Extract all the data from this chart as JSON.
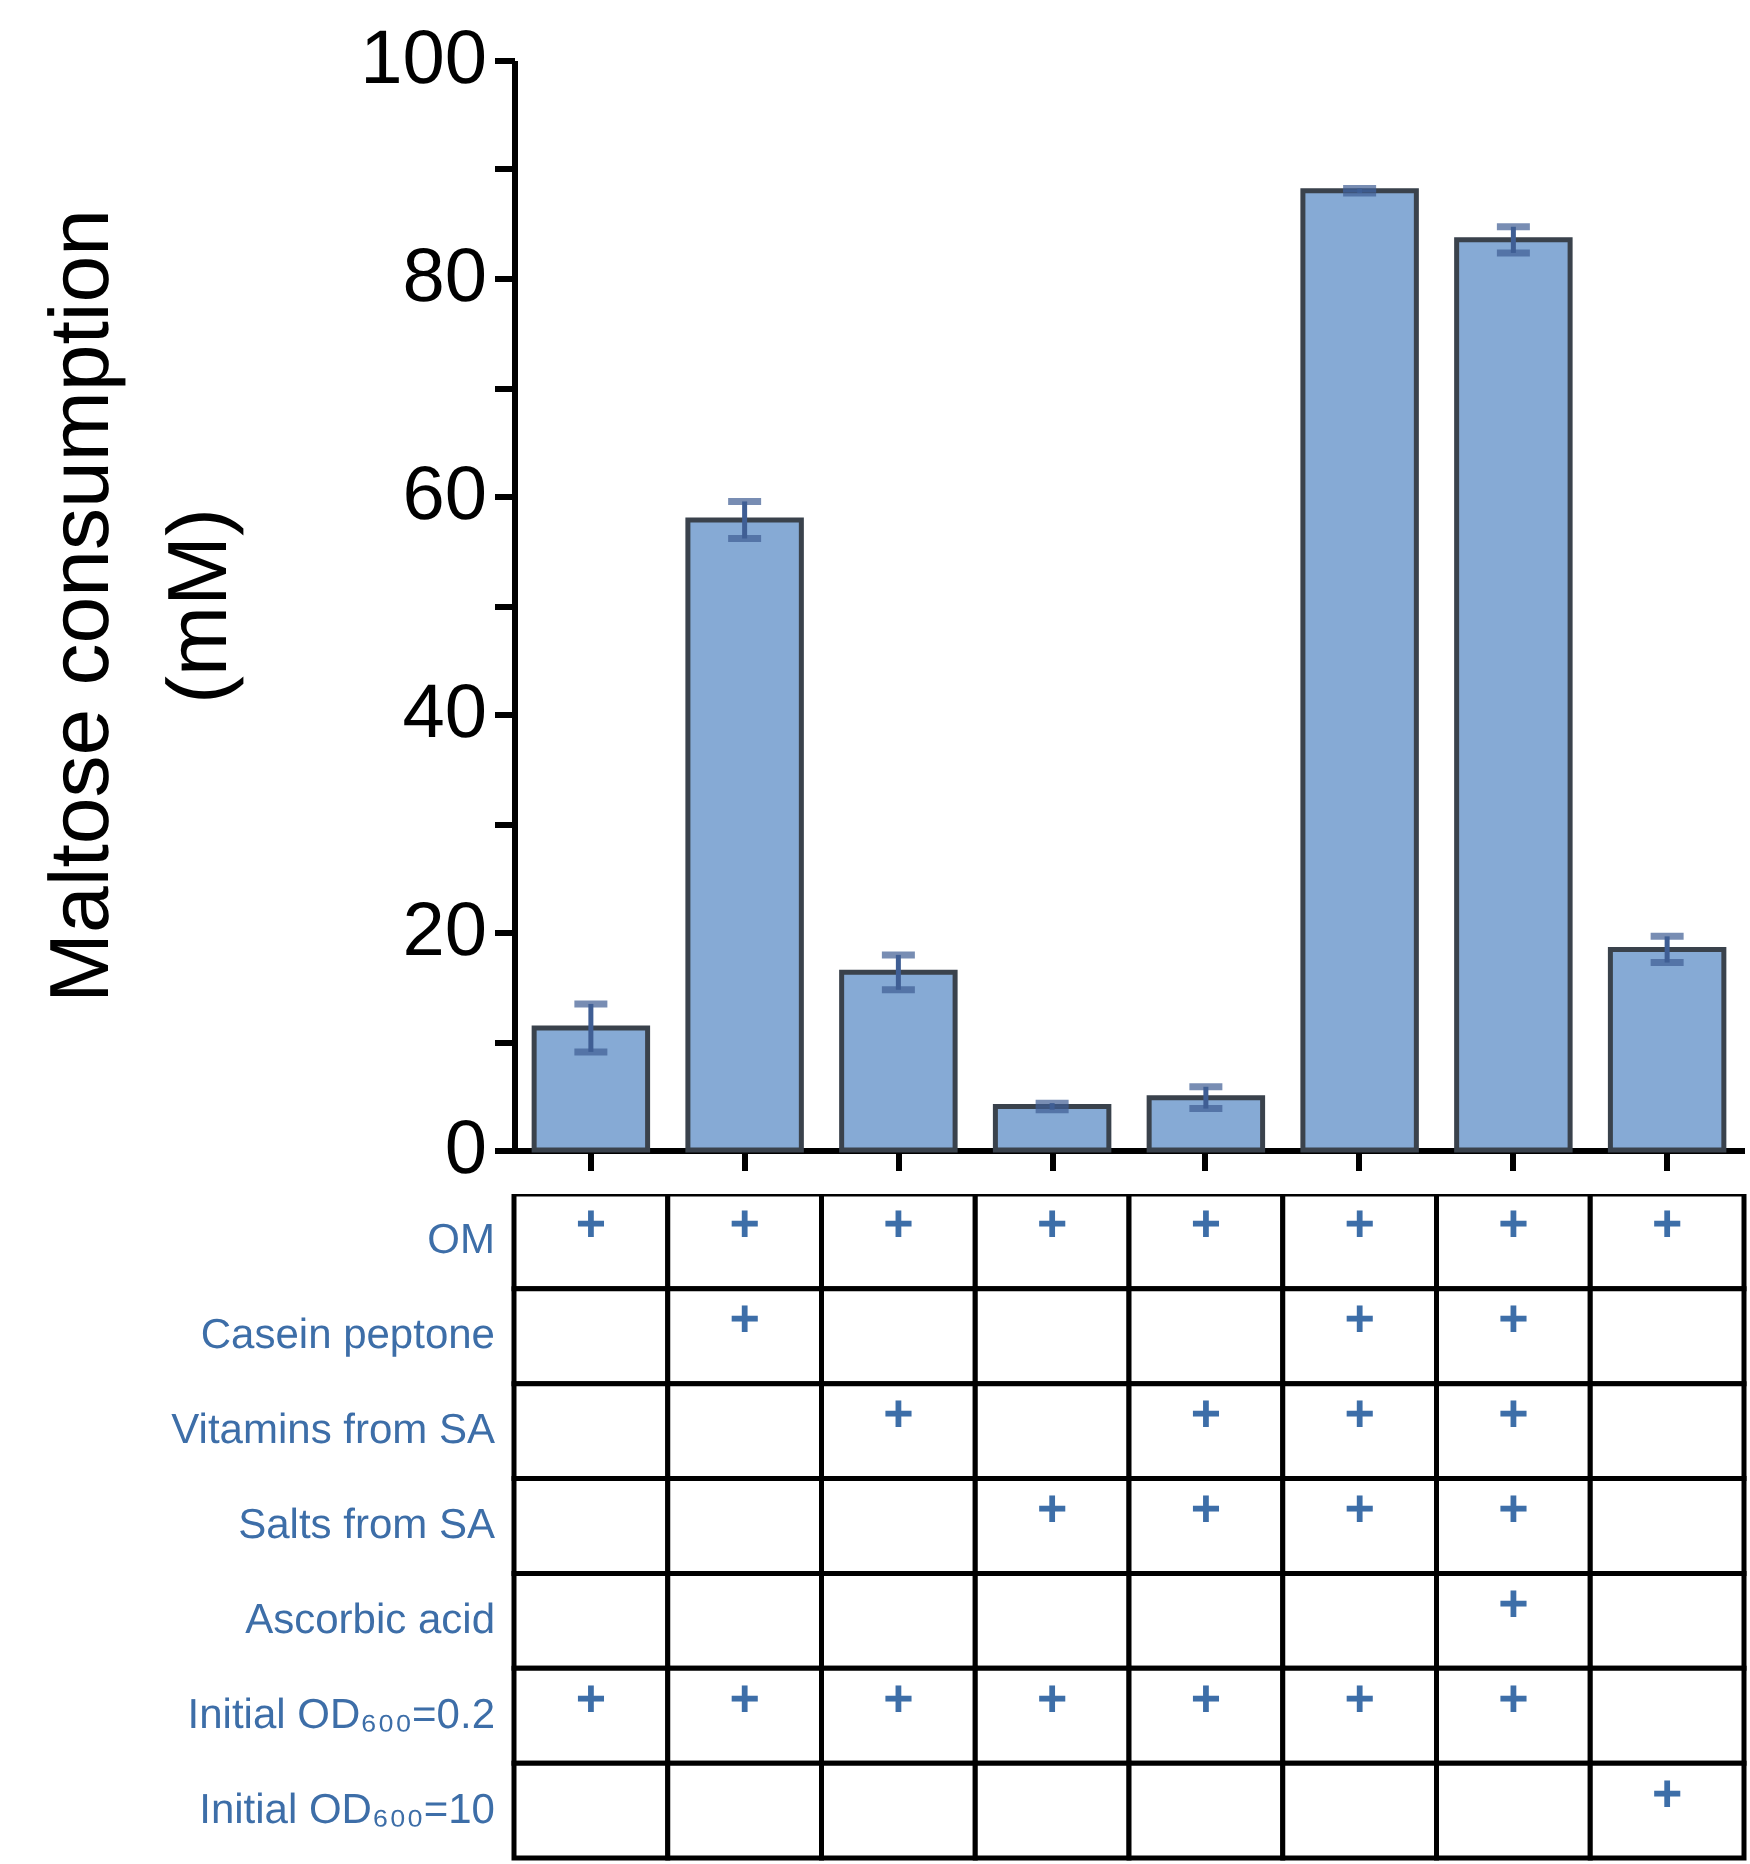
{
  "chart_data": [
    {
      "type": "bar",
      "ylabel": "Maltose consumption\n(mM)",
      "categories": [
        null,
        null,
        null,
        null,
        null,
        null,
        null,
        null
      ],
      "values": [
        11.2,
        57.8,
        16.3,
        4.0,
        4.8,
        88.0,
        83.5,
        18.4
      ],
      "errors": [
        2.2,
        1.7,
        1.6,
        0.3,
        1.0,
        0.2,
        1.2,
        1.2
      ],
      "color": "#86aad5",
      "ylim": [
        0,
        100
      ],
      "yticks": [
        0,
        {
          "value": 10,
          "label": null
        },
        20,
        {
          "value": 30,
          "label": null
        },
        40,
        {
          "value": 50,
          "label": null
        },
        60,
        {
          "value": 70,
          "label": null
        },
        80,
        {
          "value": 90,
          "label": null
        },
        100
      ],
      "grid": false
    },
    {
      "type": "heatmap",
      "categories": [
        null,
        null,
        null,
        null,
        null,
        null,
        null,
        null
      ],
      "y_categories": [
        "OM",
        "Casein peptone",
        "Vitamins from SA",
        "Salts from SA",
        "Ascorbic acid",
        "Initial OD₆₀₀=0.2",
        "Initial OD₆₀₀=10"
      ],
      "cells": [
        [
          null,
          null,
          null,
          null,
          null,
          null,
          null,
          null
        ],
        [
          null,
          null,
          null,
          null,
          null,
          null,
          null,
          null
        ],
        [
          null,
          null,
          null,
          null,
          null,
          null,
          null,
          null
        ],
        [
          null,
          null,
          null,
          null,
          null,
          null,
          null,
          null
        ],
        [
          null,
          null,
          null,
          null,
          null,
          null,
          null,
          null
        ],
        [
          null,
          null,
          null,
          null,
          null,
          null,
          null,
          null
        ],
        [
          null,
          null,
          null,
          null,
          null,
          null,
          null,
          null
        ]
      ],
      "cell_labels": [
        [
          "+",
          "+",
          "+",
          "+",
          "+",
          "+",
          "+",
          "+"
        ],
        [
          null,
          "+",
          null,
          null,
          null,
          "+",
          "+",
          null
        ],
        [
          null,
          null,
          "+",
          null,
          "+",
          "+",
          "+",
          null
        ],
        [
          null,
          null,
          null,
          "+",
          "+",
          "+",
          "+",
          null
        ],
        [
          null,
          null,
          null,
          null,
          null,
          null,
          "+",
          null
        ],
        [
          "+",
          "+",
          "+",
          "+",
          "+",
          "+",
          "+",
          null
        ],
        [
          null,
          null,
          null,
          null,
          null,
          null,
          null,
          "+"
        ]
      ]
    }
  ]
}
